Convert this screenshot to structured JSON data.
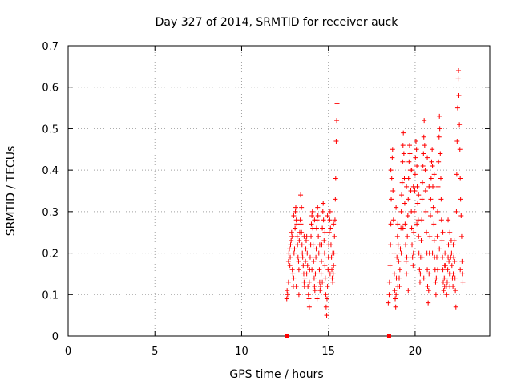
{
  "chart_data": {
    "type": "scatter",
    "title": "Day 327 of 2014, SRMTID for receiver auck",
    "xlabel": "GPS time / hours",
    "ylabel": "SRMTID / TECUs",
    "xlim": [
      0,
      24.3
    ],
    "ylim": [
      0,
      0.7
    ],
    "xticks": [
      0,
      5,
      10,
      15,
      20
    ],
    "yticks": [
      0,
      0.1,
      0.2,
      0.3,
      0.4,
      0.5,
      0.6,
      0.7
    ],
    "grid": true,
    "marker": "+",
    "color": "#ff0000",
    "zero_markers": [
      {
        "x": 12.6,
        "y": 0
      },
      {
        "x": 18.5,
        "y": 0
      }
    ],
    "points": [
      [
        12.6,
        0.09
      ],
      [
        12.62,
        0.11
      ],
      [
        12.65,
        0.1
      ],
      [
        12.7,
        0.18
      ],
      [
        12.72,
        0.2
      ],
      [
        12.75,
        0.21
      ],
      [
        12.78,
        0.17
      ],
      [
        12.8,
        0.19
      ],
      [
        12.82,
        0.22
      ],
      [
        12.85,
        0.23
      ],
      [
        12.88,
        0.25
      ],
      [
        12.9,
        0.24
      ],
      [
        12.92,
        0.16
      ],
      [
        12.95,
        0.15
      ],
      [
        12.98,
        0.12
      ],
      [
        13.0,
        0.14
      ],
      [
        13.02,
        0.2
      ],
      [
        13.05,
        0.21
      ],
      [
        13.08,
        0.26
      ],
      [
        13.1,
        0.3
      ],
      [
        13.12,
        0.31
      ],
      [
        13.15,
        0.28
      ],
      [
        13.18,
        0.27
      ],
      [
        13.2,
        0.24
      ],
      [
        13.22,
        0.22
      ],
      [
        13.25,
        0.19
      ],
      [
        13.28,
        0.18
      ],
      [
        13.3,
        0.16
      ],
      [
        13.32,
        0.23
      ],
      [
        13.35,
        0.25
      ],
      [
        13.38,
        0.28
      ],
      [
        13.4,
        0.34
      ],
      [
        13.42,
        0.27
      ],
      [
        13.45,
        0.25
      ],
      [
        13.48,
        0.22
      ],
      [
        13.5,
        0.2
      ],
      [
        13.52,
        0.19
      ],
      [
        13.55,
        0.17
      ],
      [
        13.58,
        0.15
      ],
      [
        13.6,
        0.13
      ],
      [
        13.62,
        0.12
      ],
      [
        13.65,
        0.14
      ],
      [
        13.68,
        0.18
      ],
      [
        13.7,
        0.21
      ],
      [
        13.72,
        0.23
      ],
      [
        13.75,
        0.24
      ],
      [
        13.78,
        0.2
      ],
      [
        13.8,
        0.17
      ],
      [
        13.82,
        0.12
      ],
      [
        13.85,
        0.1
      ],
      [
        13.88,
        0.09
      ],
      [
        13.9,
        0.13
      ],
      [
        13.92,
        0.16
      ],
      [
        13.95,
        0.19
      ],
      [
        13.98,
        0.22
      ],
      [
        14.0,
        0.24
      ],
      [
        14.02,
        0.27
      ],
      [
        14.05,
        0.29
      ],
      [
        14.08,
        0.3
      ],
      [
        14.1,
        0.26
      ],
      [
        14.12,
        0.22
      ],
      [
        14.15,
        0.18
      ],
      [
        14.18,
        0.14
      ],
      [
        14.2,
        0.12
      ],
      [
        14.22,
        0.11
      ],
      [
        14.25,
        0.15
      ],
      [
        14.28,
        0.19
      ],
      [
        14.3,
        0.21
      ],
      [
        14.32,
        0.26
      ],
      [
        14.35,
        0.28
      ],
      [
        14.38,
        0.31
      ],
      [
        14.4,
        0.29
      ],
      [
        14.42,
        0.24
      ],
      [
        14.45,
        0.2
      ],
      [
        14.48,
        0.16
      ],
      [
        14.5,
        0.13
      ],
      [
        14.52,
        0.11
      ],
      [
        14.55,
        0.12
      ],
      [
        14.58,
        0.15
      ],
      [
        14.6,
        0.18
      ],
      [
        14.62,
        0.22
      ],
      [
        14.65,
        0.26
      ],
      [
        14.68,
        0.3
      ],
      [
        14.7,
        0.32
      ],
      [
        14.72,
        0.28
      ],
      [
        14.75,
        0.23
      ],
      [
        14.78,
        0.2
      ],
      [
        14.8,
        0.17
      ],
      [
        14.82,
        0.14
      ],
      [
        14.85,
        0.1
      ],
      [
        14.87,
        0.07
      ],
      [
        14.9,
        0.05
      ],
      [
        14.92,
        0.09
      ],
      [
        14.95,
        0.12
      ],
      [
        14.98,
        0.16
      ],
      [
        15.0,
        0.19
      ],
      [
        15.02,
        0.22
      ],
      [
        15.05,
        0.25
      ],
      [
        15.08,
        0.28
      ],
      [
        15.1,
        0.3
      ],
      [
        15.12,
        0.26
      ],
      [
        15.15,
        0.22
      ],
      [
        15.18,
        0.19
      ],
      [
        15.2,
        0.16
      ],
      [
        15.22,
        0.14
      ],
      [
        15.25,
        0.13
      ],
      [
        15.28,
        0.15
      ],
      [
        15.3,
        0.17
      ],
      [
        15.32,
        0.2
      ],
      [
        15.35,
        0.24
      ],
      [
        15.38,
        0.28
      ],
      [
        15.4,
        0.33
      ],
      [
        15.42,
        0.38
      ],
      [
        15.45,
        0.47
      ],
      [
        15.48,
        0.52
      ],
      [
        15.5,
        0.56
      ],
      [
        12.7,
        0.13
      ],
      [
        13.0,
        0.29
      ],
      [
        13.3,
        0.1
      ],
      [
        13.6,
        0.24
      ],
      [
        13.9,
        0.07
      ],
      [
        14.2,
        0.28
      ],
      [
        14.5,
        0.22
      ],
      [
        14.8,
        0.25
      ],
      [
        15.1,
        0.15
      ],
      [
        15.3,
        0.27
      ],
      [
        13.15,
        0.12
      ],
      [
        13.45,
        0.31
      ],
      [
        13.75,
        0.15
      ],
      [
        14.05,
        0.16
      ],
      [
        14.35,
        0.09
      ],
      [
        14.65,
        0.13
      ],
      [
        14.95,
        0.29
      ],
      [
        15.25,
        0.2
      ],
      [
        18.45,
        0.08
      ],
      [
        18.5,
        0.1
      ],
      [
        18.52,
        0.13
      ],
      [
        18.55,
        0.17
      ],
      [
        18.58,
        0.22
      ],
      [
        18.6,
        0.27
      ],
      [
        18.62,
        0.33
      ],
      [
        18.65,
        0.38
      ],
      [
        18.68,
        0.43
      ],
      [
        18.7,
        0.45
      ],
      [
        18.72,
        0.35
      ],
      [
        18.75,
        0.28
      ],
      [
        18.78,
        0.2
      ],
      [
        18.8,
        0.15
      ],
      [
        18.82,
        0.11
      ],
      [
        18.85,
        0.09
      ],
      [
        18.88,
        0.07
      ],
      [
        18.9,
        0.1
      ],
      [
        18.92,
        0.14
      ],
      [
        18.95,
        0.19
      ],
      [
        18.98,
        0.24
      ],
      [
        19.0,
        0.27
      ],
      [
        19.02,
        0.22
      ],
      [
        19.05,
        0.18
      ],
      [
        19.08,
        0.14
      ],
      [
        19.1,
        0.12
      ],
      [
        19.12,
        0.16
      ],
      [
        19.15,
        0.21
      ],
      [
        19.18,
        0.26
      ],
      [
        19.2,
        0.3
      ],
      [
        19.22,
        0.34
      ],
      [
        19.25,
        0.37
      ],
      [
        19.28,
        0.42
      ],
      [
        19.3,
        0.46
      ],
      [
        19.32,
        0.49
      ],
      [
        19.35,
        0.44
      ],
      [
        19.38,
        0.38
      ],
      [
        19.4,
        0.32
      ],
      [
        19.42,
        0.27
      ],
      [
        19.45,
        0.22
      ],
      [
        19.48,
        0.18
      ],
      [
        19.5,
        0.15
      ],
      [
        19.52,
        0.19
      ],
      [
        19.55,
        0.24
      ],
      [
        19.58,
        0.29
      ],
      [
        19.6,
        0.33
      ],
      [
        19.62,
        0.38
      ],
      [
        19.65,
        0.42
      ],
      [
        19.68,
        0.46
      ],
      [
        19.7,
        0.44
      ],
      [
        19.72,
        0.4
      ],
      [
        19.75,
        0.35
      ],
      [
        19.78,
        0.3
      ],
      [
        19.8,
        0.26
      ],
      [
        19.82,
        0.22
      ],
      [
        19.85,
        0.19
      ],
      [
        19.88,
        0.17
      ],
      [
        19.9,
        0.2
      ],
      [
        19.92,
        0.25
      ],
      [
        19.95,
        0.3
      ],
      [
        19.98,
        0.35
      ],
      [
        20.0,
        0.39
      ],
      [
        20.02,
        0.43
      ],
      [
        20.05,
        0.47
      ],
      [
        20.08,
        0.45
      ],
      [
        20.1,
        0.41
      ],
      [
        20.12,
        0.36
      ],
      [
        20.15,
        0.32
      ],
      [
        20.18,
        0.28
      ],
      [
        20.2,
        0.24
      ],
      [
        20.22,
        0.2
      ],
      [
        20.25,
        0.16
      ],
      [
        20.28,
        0.13
      ],
      [
        20.3,
        0.15
      ],
      [
        20.32,
        0.19
      ],
      [
        20.35,
        0.23
      ],
      [
        20.38,
        0.28
      ],
      [
        20.4,
        0.33
      ],
      [
        20.42,
        0.37
      ],
      [
        20.45,
        0.41
      ],
      [
        20.48,
        0.44
      ],
      [
        20.5,
        0.48
      ],
      [
        20.52,
        0.52
      ],
      [
        20.55,
        0.46
      ],
      [
        20.58,
        0.4
      ],
      [
        20.6,
        0.35
      ],
      [
        20.62,
        0.3
      ],
      [
        20.65,
        0.25
      ],
      [
        20.68,
        0.2
      ],
      [
        20.7,
        0.16
      ],
      [
        20.72,
        0.12
      ],
      [
        20.75,
        0.08
      ],
      [
        20.78,
        0.11
      ],
      [
        20.8,
        0.15
      ],
      [
        20.82,
        0.2
      ],
      [
        20.85,
        0.24
      ],
      [
        20.88,
        0.29
      ],
      [
        20.9,
        0.33
      ],
      [
        20.92,
        0.38
      ],
      [
        20.95,
        0.42
      ],
      [
        20.98,
        0.45
      ],
      [
        21.0,
        0.41
      ],
      [
        21.02,
        0.36
      ],
      [
        21.05,
        0.31
      ],
      [
        21.08,
        0.27
      ],
      [
        21.1,
        0.23
      ],
      [
        21.12,
        0.19
      ],
      [
        21.15,
        0.16
      ],
      [
        21.18,
        0.13
      ],
      [
        21.2,
        0.1
      ],
      [
        21.22,
        0.14
      ],
      [
        21.25,
        0.19
      ],
      [
        21.28,
        0.24
      ],
      [
        21.3,
        0.3
      ],
      [
        21.32,
        0.36
      ],
      [
        21.35,
        0.42
      ],
      [
        21.38,
        0.48
      ],
      [
        21.4,
        0.53
      ],
      [
        21.42,
        0.5
      ],
      [
        21.45,
        0.44
      ],
      [
        21.48,
        0.38
      ],
      [
        21.5,
        0.33
      ],
      [
        21.52,
        0.28
      ],
      [
        21.55,
        0.23
      ],
      [
        21.58,
        0.19
      ],
      [
        21.6,
        0.16
      ],
      [
        21.62,
        0.13
      ],
      [
        21.65,
        0.11
      ],
      [
        21.68,
        0.14
      ],
      [
        21.7,
        0.17
      ],
      [
        21.72,
        0.2
      ],
      [
        21.75,
        0.17
      ],
      [
        21.78,
        0.14
      ],
      [
        21.8,
        0.12
      ],
      [
        21.82,
        0.1
      ],
      [
        21.85,
        0.13
      ],
      [
        21.88,
        0.16
      ],
      [
        21.9,
        0.19
      ],
      [
        21.92,
        0.22
      ],
      [
        21.95,
        0.18
      ],
      [
        21.98,
        0.15
      ],
      [
        22.0,
        0.12
      ],
      [
        22.02,
        0.15
      ],
      [
        22.05,
        0.19
      ],
      [
        22.08,
        0.23
      ],
      [
        22.1,
        0.2
      ],
      [
        22.12,
        0.17
      ],
      [
        22.15,
        0.14
      ],
      [
        22.18,
        0.12
      ],
      [
        22.2,
        0.15
      ],
      [
        22.22,
        0.19
      ],
      [
        22.25,
        0.23
      ],
      [
        22.28,
        0.18
      ],
      [
        22.3,
        0.14
      ],
      [
        22.32,
        0.11
      ],
      [
        22.35,
        0.07
      ],
      [
        22.38,
        0.3
      ],
      [
        22.4,
        0.39
      ],
      [
        22.42,
        0.47
      ],
      [
        22.45,
        0.55
      ],
      [
        22.48,
        0.62
      ],
      [
        22.5,
        0.64
      ],
      [
        22.52,
        0.58
      ],
      [
        22.55,
        0.51
      ],
      [
        22.58,
        0.45
      ],
      [
        22.6,
        0.38
      ],
      [
        22.62,
        0.33
      ],
      [
        22.65,
        0.29
      ],
      [
        22.68,
        0.24
      ],
      [
        22.7,
        0.18
      ],
      [
        22.72,
        0.15
      ],
      [
        22.75,
        0.13
      ],
      [
        18.6,
        0.4
      ],
      [
        18.9,
        0.31
      ],
      [
        19.2,
        0.2
      ],
      [
        19.5,
        0.36
      ],
      [
        19.8,
        0.4
      ],
      [
        20.1,
        0.27
      ],
      [
        20.4,
        0.19
      ],
      [
        20.7,
        0.43
      ],
      [
        21.0,
        0.2
      ],
      [
        21.3,
        0.16
      ],
      [
        21.6,
        0.25
      ],
      [
        21.9,
        0.28
      ],
      [
        22.2,
        0.22
      ],
      [
        22.6,
        0.16
      ],
      [
        19.0,
        0.12
      ],
      [
        19.3,
        0.26
      ],
      [
        19.6,
        0.11
      ],
      [
        19.9,
        0.36
      ],
      [
        20.2,
        0.34
      ],
      [
        20.5,
        0.14
      ],
      [
        20.8,
        0.36
      ],
      [
        21.1,
        0.39
      ],
      [
        21.4,
        0.21
      ],
      [
        21.7,
        0.12
      ],
      [
        22.0,
        0.25
      ]
    ]
  }
}
